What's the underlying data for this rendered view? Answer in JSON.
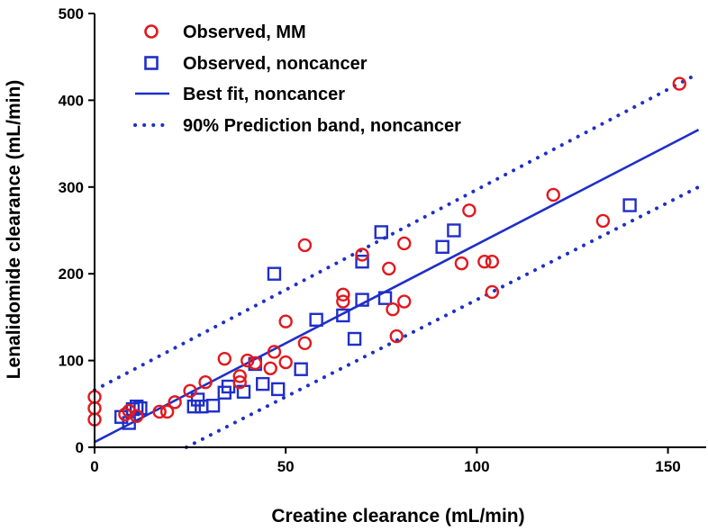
{
  "chart_data": {
    "type": "scatter",
    "title": "",
    "xlabel": "Creatine clearance (mL/min)",
    "ylabel": "Lenalidomide clearance (mL/min)",
    "xlim": [
      0,
      160
    ],
    "ylim": [
      0,
      500
    ],
    "x_ticks": [
      0,
      50,
      100,
      150
    ],
    "y_ticks": [
      0,
      100,
      200,
      300,
      400,
      500
    ],
    "legend_position": "top-left",
    "colors": {
      "mm": "#e0191f",
      "noncancer": "#1f2fc8"
    },
    "series": [
      {
        "name": "Observed, MM",
        "marker": "circle",
        "points": [
          [
            0,
            58
          ],
          [
            0,
            45
          ],
          [
            0,
            32
          ],
          [
            8,
            38
          ],
          [
            9,
            42
          ],
          [
            11,
            36
          ],
          [
            17,
            41
          ],
          [
            19,
            41
          ],
          [
            21,
            52
          ],
          [
            25,
            65
          ],
          [
            29,
            75
          ],
          [
            34,
            102
          ],
          [
            38,
            75
          ],
          [
            38,
            82
          ],
          [
            40,
            100
          ],
          [
            42,
            97
          ],
          [
            46,
            91
          ],
          [
            47,
            110
          ],
          [
            50,
            145
          ],
          [
            50,
            98
          ],
          [
            55,
            120
          ],
          [
            55,
            233
          ],
          [
            65,
            176
          ],
          [
            65,
            168
          ],
          [
            70,
            222
          ],
          [
            77,
            206
          ],
          [
            78,
            159
          ],
          [
            79,
            128
          ],
          [
            81,
            168
          ],
          [
            81,
            235
          ],
          [
            96,
            212
          ],
          [
            98,
            273
          ],
          [
            102,
            214
          ],
          [
            104,
            214
          ],
          [
            104,
            179
          ],
          [
            120,
            291
          ],
          [
            133,
            261
          ],
          [
            153,
            419
          ]
        ]
      },
      {
        "name": "Observed, noncancer",
        "marker": "square",
        "points": [
          [
            7,
            35
          ],
          [
            9,
            28
          ],
          [
            10,
            44
          ],
          [
            11,
            47
          ],
          [
            12,
            45
          ],
          [
            26,
            47
          ],
          [
            27,
            55
          ],
          [
            28,
            47
          ],
          [
            31,
            48
          ],
          [
            34,
            63
          ],
          [
            35,
            70
          ],
          [
            39,
            64
          ],
          [
            42,
            96
          ],
          [
            44,
            73
          ],
          [
            47,
            200
          ],
          [
            48,
            67
          ],
          [
            54,
            90
          ],
          [
            58,
            147
          ],
          [
            65,
            152
          ],
          [
            68,
            125
          ],
          [
            70,
            214
          ],
          [
            70,
            170
          ],
          [
            75,
            248
          ],
          [
            76,
            172
          ],
          [
            91,
            231
          ],
          [
            94,
            250
          ],
          [
            140,
            279
          ]
        ]
      },
      {
        "name": "Best fit, noncancer",
        "style": "solid",
        "points": [
          [
            0,
            6
          ],
          [
            158,
            366
          ]
        ]
      },
      {
        "name": "90% Prediction band, noncancer",
        "style": "dotted",
        "upper": [
          [
            0,
            66
          ],
          [
            158,
            431
          ]
        ],
        "lower": [
          [
            24,
            0
          ],
          [
            158,
            300
          ]
        ]
      }
    ]
  }
}
